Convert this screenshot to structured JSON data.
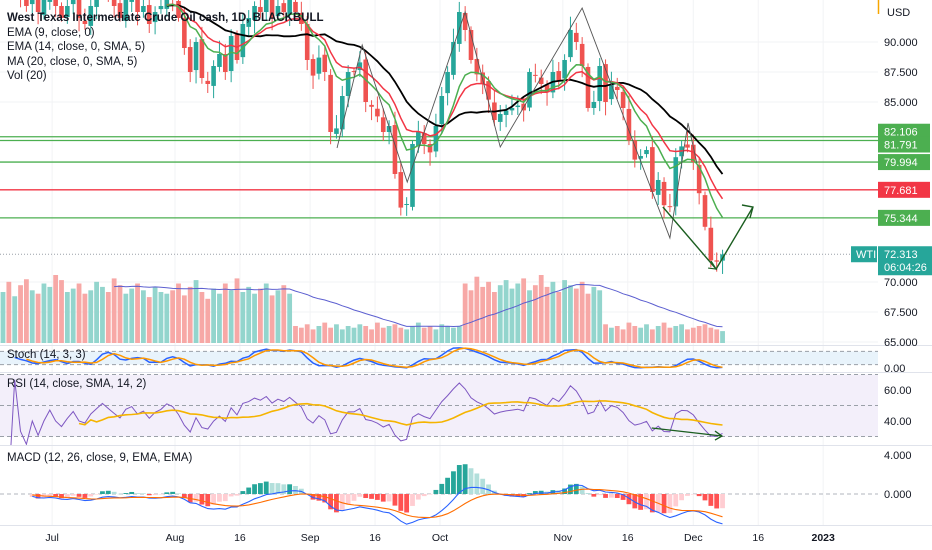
{
  "header": {
    "title": "West Texas Intermediate Crude Oil cash, 1D, BLACKBULL",
    "indicators": [
      "EMA (9, close, 0)",
      "EMA (14, close, 0, SMA, 5)",
      "MA (20, close, 0, SMA, 5)",
      "Vol (20)"
    ]
  },
  "price_axis": {
    "currency": "USD",
    "ticks": [
      {
        "value": 90,
        "label": "90.000"
      },
      {
        "value": 87.5,
        "label": "87.500"
      },
      {
        "value": 85,
        "label": "85.000"
      },
      {
        "value": 70,
        "label": "70.000"
      },
      {
        "value": 67.5,
        "label": "67.500"
      },
      {
        "value": 65,
        "label": "65.000"
      }
    ]
  },
  "levels": [
    {
      "price": 82.106,
      "label": "82.106",
      "color": "#4caf50"
    },
    {
      "price": 81.791,
      "label": "81.791",
      "color": "#4caf50"
    },
    {
      "price": 79.994,
      "label": "79.994",
      "color": "#4caf50"
    },
    {
      "price": 77.681,
      "label": "77.681",
      "color": "#f23645"
    },
    {
      "price": 75.344,
      "label": "75.344",
      "color": "#4caf50"
    }
  ],
  "last_price": {
    "symbol": "WTI",
    "value": 72.313,
    "label": "72.313",
    "countdown": "06:04:26",
    "color": "#26a69a"
  },
  "panes": {
    "stoch": {
      "label": "Stoch (14, 3, 3)",
      "ticks": [
        {
          "value": 0,
          "label": "0.00"
        }
      ]
    },
    "rsi": {
      "label": "RSI (14, close, SMA, 14, 2)",
      "ticks": [
        {
          "value": 60,
          "label": "60.00"
        },
        {
          "value": 40,
          "label": "40.00"
        }
      ]
    },
    "macd": {
      "label": "MACD (12, 26, close, 9, EMA, EMA)",
      "ticks": [
        {
          "value": 4,
          "label": "4.000"
        },
        {
          "value": 0,
          "label": "0.000"
        }
      ]
    }
  },
  "time_axis": {
    "labels": [
      {
        "label": "Jul",
        "bar": 8.4,
        "bold": false
      },
      {
        "label": "Aug",
        "bar": 29.4,
        "bold": false
      },
      {
        "label": "16",
        "bar": 40.5,
        "bold": false
      },
      {
        "label": "Sep",
        "bar": 52.5,
        "bold": false
      },
      {
        "label": "16",
        "bar": 63.6,
        "bold": false
      },
      {
        "label": "Oct",
        "bar": 74.7,
        "bold": false
      },
      {
        "label": "Nov",
        "bar": 95.7,
        "bold": false
      },
      {
        "label": "16",
        "bar": 106.8,
        "bold": false
      },
      {
        "label": "Dec",
        "bar": 118,
        "bold": false
      },
      {
        "label": "16",
        "bar": 129.1,
        "bold": false
      },
      {
        "label": "2023",
        "bar": 140.2,
        "bold": true
      }
    ]
  },
  "colors": {
    "up": "#26a69a",
    "down": "#ef5350",
    "vol_up": "#93d5cd",
    "vol_down": "#f7a8a6",
    "ema9": "#4caf50",
    "ema14": "#f23645",
    "ma20": "#000000",
    "vol_ma": "#5c5fd0",
    "stoch_k": "#2962ff",
    "stoch_d": "#ff9800",
    "rsi": "#7e57c2",
    "rsi_ma": "#f5b400",
    "macd": "#2962ff",
    "signal": "#ff6d00"
  },
  "chart_data": {
    "type": "candlestick",
    "title": "West Texas Intermediate Crude Oil cash, 1D, BLACKBULL",
    "ylim": [
      63.5,
      93.5
    ],
    "close": [
      95,
      94.5,
      95.5,
      94,
      93,
      94,
      92.5,
      93.5,
      94.5,
      93,
      92,
      93,
      94,
      92,
      91.5,
      93,
      94,
      95,
      94,
      93,
      92,
      93.5,
      94,
      92.5,
      93,
      91.5,
      92.5,
      93,
      94,
      93.5,
      92,
      89.5,
      87.5,
      90,
      87,
      86.5,
      88,
      89,
      87.5,
      90.5,
      88.5,
      91.5,
      92,
      93,
      92.5,
      93.5,
      92,
      93,
      92.5,
      93.5,
      92.5,
      91.5,
      88.5,
      87.2,
      88.7,
      87.5,
      82.5,
      82.8,
      85.5,
      87.5,
      87.5,
      88.3,
      85,
      84.6,
      83.8,
      82.5,
      83,
      79,
      76.2,
      76.5,
      81.5,
      82.5,
      81.5,
      80.8,
      83,
      85.5,
      87.5,
      90,
      92.5,
      91,
      88.5,
      87.3,
      86.5,
      85.2,
      83.5,
      84,
      84.3,
      84.5,
      84.7,
      84.3,
      87.5,
      87.2,
      86.5,
      85.8,
      87.5,
      86.8,
      88.5,
      91,
      90,
      88,
      84.5,
      85,
      88,
      85,
      86.5,
      86,
      84.5,
      81.8,
      80.2,
      80.5,
      81,
      77.5,
      78.5,
      76.4,
      76.3,
      80.4,
      81.3,
      81.2,
      80,
      77.4,
      74.6,
      71.8,
      71.7,
      72.3
    ],
    "volume": [
      60,
      72,
      55,
      68,
      75,
      62,
      58,
      70,
      66,
      80,
      74,
      60,
      64,
      70,
      58,
      62,
      72,
      66,
      60,
      76,
      68,
      58,
      64,
      70,
      62,
      54,
      66,
      60,
      58,
      62,
      70,
      56,
      66,
      74,
      60,
      52,
      64,
      58,
      70,
      62,
      76,
      60,
      66,
      58,
      64,
      70,
      56,
      62,
      68,
      58,
      20,
      18,
      22,
      16,
      20,
      24,
      18,
      22,
      16,
      20,
      18,
      22,
      20,
      16,
      24,
      18,
      20,
      22,
      18,
      16,
      20,
      24,
      18,
      20,
      16,
      22,
      20,
      18,
      20,
      70,
      62,
      78,
      66,
      72,
      60,
      68,
      74,
      64,
      70,
      76,
      62,
      68,
      80,
      66,
      72,
      60,
      74,
      68,
      64,
      72,
      58,
      66,
      62,
      22,
      18,
      20,
      16,
      24,
      20,
      18,
      22,
      16,
      20,
      24,
      18,
      20,
      22,
      16,
      18,
      20,
      22,
      18,
      16,
      14
    ],
    "drawings": {
      "zigzag": [
        [
          57.1,
          81.17
        ],
        [
          61.4,
          89.75
        ],
        [
          69.1,
          78.33
        ],
        [
          79.0,
          92.5
        ],
        [
          85.0,
          81.25
        ],
        [
          99.0,
          92.83
        ],
        [
          114.0,
          73.67
        ],
        [
          117.1,
          83.25
        ],
        [
          118.6,
          79.92
        ]
      ],
      "projection_arrow": [
        [
          112.8,
          76.25
        ],
        [
          121.9,
          71.08
        ],
        [
          128.2,
          76.25
        ]
      ],
      "rsi_divergence_arrow": [
        [
          110.9,
          35.5
        ],
        [
          122.9,
          30.3
        ]
      ]
    }
  }
}
